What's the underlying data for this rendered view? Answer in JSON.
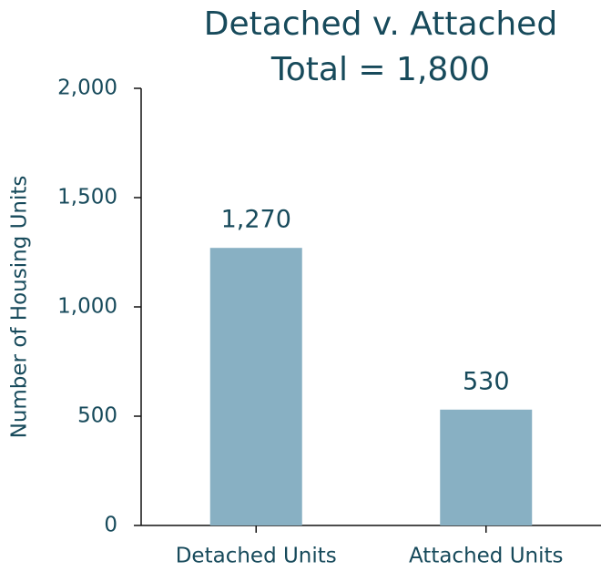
{
  "chart_data": {
    "type": "bar",
    "title": "Detached v. Attached",
    "subtitle": "Total = 1,800",
    "y_label": "Number of Housing Units",
    "categories": [
      "Detached Units",
      "Attached Units"
    ],
    "values": [
      1270,
      530
    ],
    "value_labels": [
      "1,270",
      "530"
    ],
    "color": "#88b0c3",
    "ylim": [
      0,
      2000
    ],
    "yticks": [
      0,
      500,
      {
        "value": 1000,
        "label": "1,000"
      },
      {
        "value": 1500,
        "label": "1,500"
      },
      {
        "value": 2000,
        "label": "2,000"
      }
    ],
    "grid": false
  }
}
